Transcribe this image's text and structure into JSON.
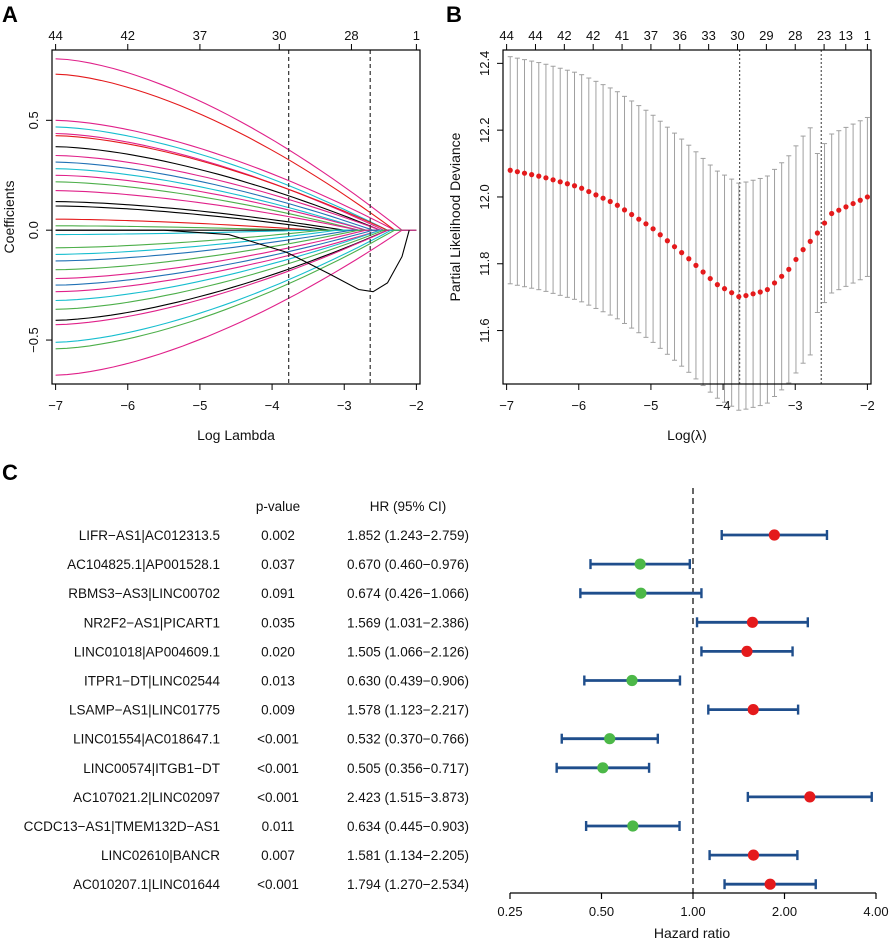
{
  "figure": {
    "panel_letters": [
      "A",
      "B",
      "C"
    ]
  },
  "chart_data": [
    {
      "panel": "A",
      "type": "line",
      "xlabel": "Log Lambda",
      "ylabel": "Coefficients",
      "xlim": [
        -7.05,
        -1.95
      ],
      "ylim": [
        -0.7,
        0.82
      ],
      "x_ticks": [
        -7,
        -6,
        -5,
        -4,
        -3,
        -2
      ],
      "y_ticks": [
        -0.5,
        0.0,
        0.5
      ],
      "y_tick_labels": [
        "-0.5",
        "0.0",
        "0.5"
      ],
      "top_ticks": [
        {
          "x": -7.0,
          "label": "44"
        },
        {
          "x": -6.0,
          "label": "42"
        },
        {
          "x": -5.0,
          "label": "37"
        },
        {
          "x": -3.9,
          "label": "30"
        },
        {
          "x": -2.9,
          "label": "28"
        },
        {
          "x": -2.0,
          "label": "1"
        }
      ],
      "vlines": [
        -3.77,
        -2.64
      ],
      "series": [
        {
          "color": "#e0218a",
          "start": 0.78,
          "end_x": -2.2
        },
        {
          "color": "#e0218a",
          "start": 0.5,
          "end_x": -2.3
        },
        {
          "color": "#e41a1c",
          "start": 0.71,
          "end_x": -2.3
        },
        {
          "color": "#17becf",
          "start": 0.47,
          "end_x": -2.4
        },
        {
          "color": "#e0218a",
          "start": 0.44,
          "end_x": -2.45
        },
        {
          "color": "#e41a1c",
          "start": 0.43,
          "end_x": -2.4
        },
        {
          "color": "#000000",
          "start": 0.38,
          "end_x": -2.5
        },
        {
          "color": "#e0218a",
          "start": 0.34,
          "end_x": -2.5
        },
        {
          "color": "#2171b5",
          "start": 0.31,
          "end_x": -2.6
        },
        {
          "color": "#17becf",
          "start": 0.28,
          "end_x": -2.7
        },
        {
          "color": "#e0218a",
          "start": 0.25,
          "end_x": -2.7
        },
        {
          "color": "#4daf4a",
          "start": 0.22,
          "end_x": -2.8
        },
        {
          "color": "#e0218a",
          "start": 0.18,
          "end_x": -2.8
        },
        {
          "color": "#000000",
          "start": 0.13,
          "end_x": -3.0
        },
        {
          "color": "#000000",
          "start": 0.11,
          "end_x": -3.2
        },
        {
          "color": "#e41a1c",
          "start": 0.05,
          "end_x": -3.4
        },
        {
          "color": "#4daf4a",
          "start": 0.02,
          "end_x": -3.6
        },
        {
          "color": "#000000",
          "start": 0.0,
          "end_x": -3.8
        },
        {
          "color": "#17becf",
          "start": -0.02,
          "end_x": -3.5
        },
        {
          "color": "#4daf4a",
          "start": -0.08,
          "end_x": -3.3
        },
        {
          "color": "#17becf",
          "start": -0.11,
          "end_x": -3.1
        },
        {
          "color": "#2171b5",
          "start": -0.14,
          "end_x": -2.9
        },
        {
          "color": "#4daf4a",
          "start": -0.18,
          "end_x": -2.8
        },
        {
          "color": "#e0218a",
          "start": -0.22,
          "end_x": -2.7
        },
        {
          "color": "#2171b5",
          "start": -0.25,
          "end_x": -2.6
        },
        {
          "color": "#e0218a",
          "start": -0.28,
          "end_x": -2.5
        },
        {
          "color": "#17becf",
          "start": -0.32,
          "end_x": -2.5
        },
        {
          "color": "#4daf4a",
          "start": -0.36,
          "end_x": -2.45
        },
        {
          "color": "#000000",
          "start": -0.41,
          "end_x": -2.4
        },
        {
          "color": "#e0218a",
          "start": -0.43,
          "end_x": -2.4
        },
        {
          "color": "#17becf",
          "start": -0.51,
          "end_x": -2.35
        },
        {
          "color": "#4daf4a",
          "start": -0.54,
          "end_x": -2.3
        },
        {
          "color": "#e0218a",
          "start": -0.66,
          "end_x": -2.2
        },
        {
          "color": "#000000",
          "path": [
            [
              -7.0,
              0.0
            ],
            [
              -5.5,
              0.0
            ],
            [
              -4.6,
              -0.02
            ],
            [
              -3.8,
              -0.1
            ],
            [
              -3.2,
              -0.2
            ],
            [
              -2.8,
              -0.27
            ],
            [
              -2.6,
              -0.28
            ],
            [
              -2.4,
              -0.24
            ],
            [
              -2.2,
              -0.12
            ],
            [
              -2.1,
              0.0
            ]
          ]
        }
      ]
    },
    {
      "panel": "B",
      "type": "scatter",
      "xlabel": "Log(λ)",
      "ylabel": "Partial Likelihood Deviance",
      "xlim": [
        -7.05,
        -1.95
      ],
      "ylim": [
        11.44,
        12.44
      ],
      "x_ticks": [
        -7,
        -6,
        -5,
        -4,
        -3,
        -2
      ],
      "y_ticks": [
        11.6,
        11.8,
        12.0,
        12.2,
        12.4
      ],
      "y_tick_labels": [
        "11.6",
        "11.8",
        "12.0",
        "12.2",
        "12.4"
      ],
      "top_ticks": [
        {
          "x": -7.0,
          "label": "44"
        },
        {
          "x": -6.6,
          "label": "44"
        },
        {
          "x": -6.2,
          "label": "42"
        },
        {
          "x": -5.8,
          "label": "42"
        },
        {
          "x": -5.4,
          "label": "41"
        },
        {
          "x": -5.0,
          "label": "37"
        },
        {
          "x": -4.6,
          "label": "36"
        },
        {
          "x": -4.2,
          "label": "33"
        },
        {
          "x": -3.8,
          "label": "30"
        },
        {
          "x": -3.4,
          "label": "29"
        },
        {
          "x": -3.0,
          "label": "28"
        },
        {
          "x": -2.6,
          "label": "23"
        },
        {
          "x": -2.3,
          "label": "13"
        },
        {
          "x": -2.0,
          "label": "1"
        }
      ],
      "vlines": [
        -3.77,
        -2.64
      ],
      "point_color": "#e41a1c",
      "error_color": "#a0a0a0",
      "n_points": 51,
      "x_start": -6.95,
      "x_end": -2.0,
      "error_halfwidth": 0.34,
      "curve_knots": [
        [
          -6.95,
          12.08
        ],
        [
          -6.5,
          12.06
        ],
        [
          -6.0,
          12.03
        ],
        [
          -5.5,
          11.98
        ],
        [
          -5.0,
          11.91
        ],
        [
          -4.5,
          11.82
        ],
        [
          -4.1,
          11.74
        ],
        [
          -3.77,
          11.7
        ],
        [
          -3.4,
          11.72
        ],
        [
          -3.1,
          11.78
        ],
        [
          -2.9,
          11.84
        ],
        [
          -2.7,
          11.89
        ],
        [
          -2.5,
          11.95
        ],
        [
          -2.3,
          11.97
        ],
        [
          -2.0,
          12.0
        ]
      ]
    },
    {
      "panel": "C",
      "type": "forest",
      "xlabel": "Hazard ratio",
      "x_scale": "log2",
      "xlim": [
        0.25,
        4.0
      ],
      "x_ticks": [
        0.25,
        0.5,
        1.0,
        2.0,
        4.0
      ],
      "x_tick_labels": [
        "0.25",
        "0.50",
        "1.00",
        "2.00",
        "4.00"
      ],
      "reference_line": 1.0,
      "col_headers": {
        "pvalue": "p-value",
        "hr": "HR (95% CI)"
      },
      "ci_color": "#1f4e8c",
      "risk_color": "#e41a1c",
      "protective_color": "#4cb848",
      "rows": [
        {
          "label": "LIFR−AS1|AC012313.5",
          "p": "0.002",
          "hr_text": "1.852 (1.243−2.759)",
          "hr": 1.852,
          "lo": 1.243,
          "hi": 2.759
        },
        {
          "label": "AC104825.1|AP001528.1",
          "p": "0.037",
          "hr_text": "0.670 (0.460−0.976)",
          "hr": 0.67,
          "lo": 0.46,
          "hi": 0.976
        },
        {
          "label": "RBMS3−AS3|LINC00702",
          "p": "0.091",
          "hr_text": "0.674 (0.426−1.066)",
          "hr": 0.674,
          "lo": 0.426,
          "hi": 1.066
        },
        {
          "label": "NR2F2−AS1|PICART1",
          "p": "0.035",
          "hr_text": "1.569 (1.031−2.386)",
          "hr": 1.569,
          "lo": 1.031,
          "hi": 2.386
        },
        {
          "label": "LINC01018|AP004609.1",
          "p": "0.020",
          "hr_text": "1.505 (1.066−2.126)",
          "hr": 1.505,
          "lo": 1.066,
          "hi": 2.126
        },
        {
          "label": "ITPR1−DT|LINC02544",
          "p": "0.013",
          "hr_text": "0.630 (0.439−0.906)",
          "hr": 0.63,
          "lo": 0.439,
          "hi": 0.906
        },
        {
          "label": "LSAMP−AS1|LINC01775",
          "p": "0.009",
          "hr_text": "1.578 (1.123−2.217)",
          "hr": 1.578,
          "lo": 1.123,
          "hi": 2.217
        },
        {
          "label": "LINC01554|AC018647.1",
          "p": "<0.001",
          "hr_text": "0.532 (0.370−0.766)",
          "hr": 0.532,
          "lo": 0.37,
          "hi": 0.766
        },
        {
          "label": "LINC00574|ITGB1−DT",
          "p": "<0.001",
          "hr_text": "0.505 (0.356−0.717)",
          "hr": 0.505,
          "lo": 0.356,
          "hi": 0.717
        },
        {
          "label": "AC107021.2|LINC02097",
          "p": "<0.001",
          "hr_text": "2.423 (1.515−3.873)",
          "hr": 2.423,
          "lo": 1.515,
          "hi": 3.873
        },
        {
          "label": "CCDC13−AS1|TMEM132D−AS1",
          "p": "0.011",
          "hr_text": "0.634 (0.445−0.903)",
          "hr": 0.634,
          "lo": 0.445,
          "hi": 0.903
        },
        {
          "label": "LINC02610|BANCR",
          "p": "0.007",
          "hr_text": "1.581 (1.134−2.205)",
          "hr": 1.581,
          "lo": 1.134,
          "hi": 2.205
        },
        {
          "label": "AC010207.1|LINC01644",
          "p": "<0.001",
          "hr_text": "1.794 (1.270−2.534)",
          "hr": 1.794,
          "lo": 1.27,
          "hi": 2.534
        }
      ]
    }
  ]
}
